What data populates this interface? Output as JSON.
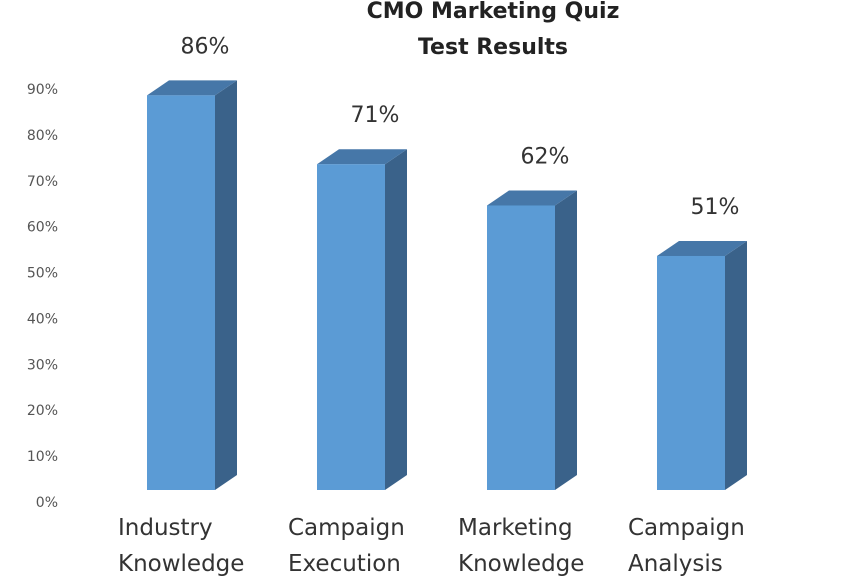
{
  "chart_data": {
    "type": "bar3d",
    "title": "CMO Marketing Quiz Test Results",
    "categories": [
      "Industry Knowledge",
      "Campaign Execution",
      "Marketing Knowledge",
      "Campaign Analysis"
    ],
    "values": [
      86,
      71,
      62,
      51
    ],
    "value_labels": [
      "86%",
      "71%",
      "62%",
      "51%"
    ],
    "color": "#5b9bd5",
    "ylim": [
      0,
      90
    ],
    "yticks": [
      {
        "value": 0,
        "label": "0%"
      },
      {
        "value": 10,
        "label": "10%"
      },
      {
        "value": 20,
        "label": "20%"
      },
      {
        "value": 30,
        "label": "30%"
      },
      {
        "value": 40,
        "label": "40%"
      },
      {
        "value": 50,
        "label": "50%"
      },
      {
        "value": 60,
        "label": "60%"
      },
      {
        "value": 70,
        "label": "70%"
      },
      {
        "value": 80,
        "label": "80%"
      },
      {
        "value": 90,
        "label": "90%"
      }
    ],
    "grid": false
  }
}
